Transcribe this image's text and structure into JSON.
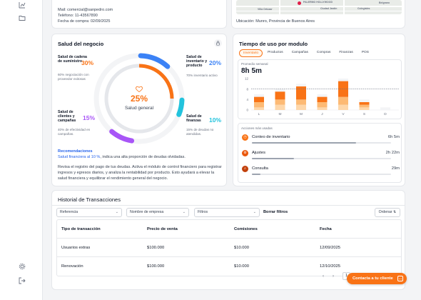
{
  "sidebar": {
    "icons": [
      "chart-icon",
      "folder-icon",
      "settings-icon",
      "logout-icon"
    ]
  },
  "contact": {
    "mail": "Mail: comercial@sanpedro.com",
    "telefono": "Teléfono: 11-43567890",
    "fecha_compra": "Fecha de compra: 02/09/2025"
  },
  "map": {
    "labels": [
      "PALERMO HOLLYWOOD",
      "Belgrano",
      "Ciudad Jardín",
      "Colegiales",
      "Villa Ortúzar"
    ],
    "ubicacion": "Ubicación: Munro, Provincia de Buenos Aires"
  },
  "salud": {
    "title": "Salud del negocio",
    "general_pct": "25%",
    "general_label": "Salud general",
    "metrics": [
      {
        "name": "Salud de cadena de suministro",
        "pct": "30%",
        "desc": "60% negociación con proveedor exitosas",
        "color": "#f97316",
        "value": 30
      },
      {
        "name": "Salud de inventario y producto",
        "pct": "20%",
        "desc": "70% inventario activo",
        "color": "#3b82f6",
        "value": 20
      },
      {
        "name": "Salud de clientes y campañas",
        "pct": "15%",
        "desc": "40% de efectividad en campañas.",
        "color": "#a855f7",
        "value": 15
      },
      {
        "name": "Salud de finanzas",
        "pct": "10%",
        "desc": "15% de deudas no atendidas.",
        "color": "#22c3dd",
        "value": 10
      }
    ],
    "rec_title": "Recomendaciones",
    "rec_link": "Salud financiera al 10 %",
    "rec_rest": ", indica una alta proporción de deudas olvidadas.",
    "rec_para": "Revisa el registro del pago de tus deudas. Activa el módulo de control financiero para registrar ingresos y egresos diarios, y analiza la rentabilidad por producto. Esto ayudará a elevar la salud financiera y equilibrar el rendimiento general del negocio."
  },
  "tiempo": {
    "title": "Tiempo de uso por modulo",
    "tabs": [
      "Inventario",
      "Productos",
      "Campañas",
      "Compras",
      "Finanzas",
      "POS"
    ],
    "active_tab": "Inventario",
    "prom_label": "Promedio semanal",
    "prom_value": "8h 5m",
    "acciones_title": "Acciones más usadas",
    "acciones": [
      {
        "name": "Conteo de inventario",
        "time": "6h 5m",
        "color": "#f97316",
        "fraction": 0.75
      },
      {
        "name": "Ajustes",
        "time": "2h 22m",
        "color": "#ea580c",
        "fraction": 0.3
      },
      {
        "name": "Consulta",
        "time": "29m",
        "color": "#c2410c",
        "fraction": 0.06
      }
    ]
  },
  "chart_data": {
    "type": "bar",
    "categories": [
      "L",
      "M",
      "M",
      "J",
      "V",
      "S",
      "D"
    ],
    "yticks": [
      "12",
      "8",
      "4",
      "0"
    ],
    "ylim": [
      0,
      12
    ],
    "average": 8,
    "series": [
      {
        "values": [
          2,
          3,
          5,
          2,
          6,
          1,
          0
        ],
        "color": "#f97316"
      },
      {
        "values": [
          2,
          2,
          2,
          2,
          3,
          1,
          0
        ],
        "color": "#fdba74"
      },
      {
        "values": [
          1,
          2,
          2,
          1,
          2,
          1,
          0
        ],
        "color": "#fed7aa"
      }
    ]
  },
  "historial": {
    "title": "Historial de Transacciones",
    "filters": [
      "Referencia",
      "Nombre de empresa",
      "Filtros"
    ],
    "clear_label": "Borrar filtros",
    "order_label": "Ordenar ⇅",
    "columns": [
      "Tipo de transacción",
      "Precio de venta",
      "Comisiones",
      "Fecha"
    ],
    "rows": [
      [
        "Usuarios extras",
        "$100.000",
        "$10.000",
        "12/09/2025"
      ],
      [
        "Renovación",
        "$100.000",
        "$10.000",
        "12/10/2025"
      ]
    ]
  },
  "pager": {
    "prev": "‹",
    "next": "›",
    "page": "1"
  },
  "cta": {
    "label": "Contacta a tu cliente"
  }
}
